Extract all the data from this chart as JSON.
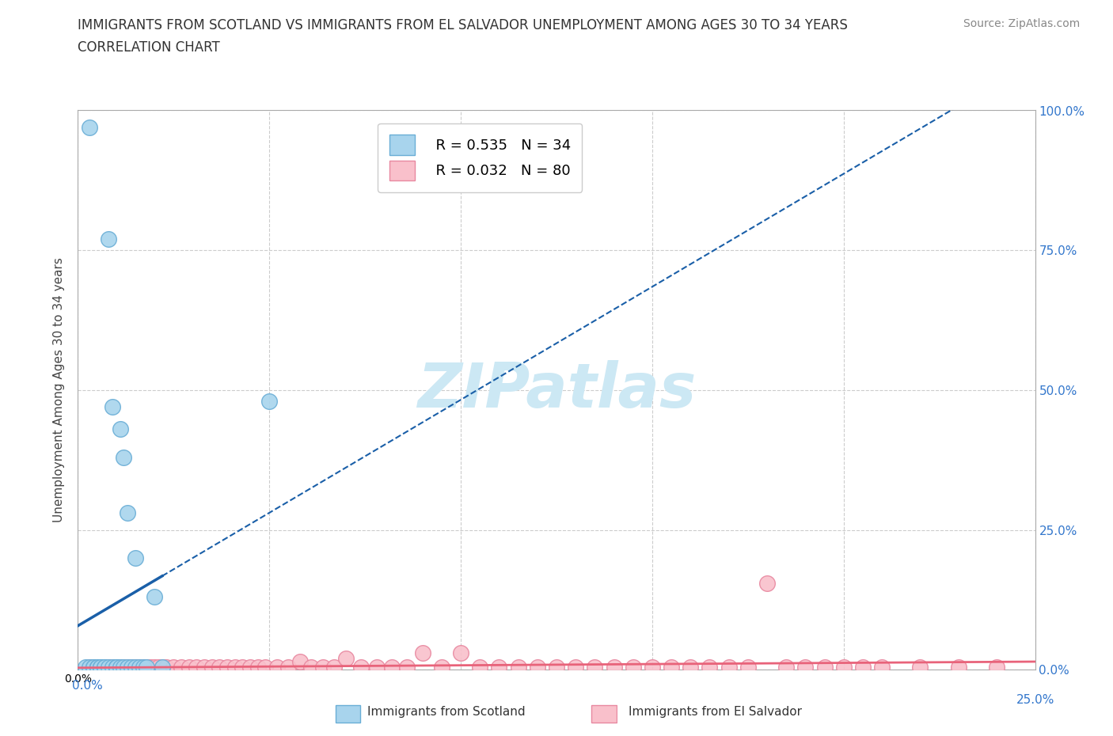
{
  "title_line1": "IMMIGRANTS FROM SCOTLAND VS IMMIGRANTS FROM EL SALVADOR UNEMPLOYMENT AMONG AGES 30 TO 34 YEARS",
  "title_line2": "CORRELATION CHART",
  "source_text": "Source: ZipAtlas.com",
  "ylabel": "Unemployment Among Ages 30 to 34 years",
  "xlim": [
    0,
    0.25
  ],
  "ylim": [
    0,
    1.0
  ],
  "xticks": [
    0.0,
    0.05,
    0.1,
    0.15,
    0.2,
    0.25
  ],
  "yticks": [
    0.0,
    0.25,
    0.5,
    0.75,
    1.0
  ],
  "scotland_color": "#a8d4ed",
  "scotland_edge": "#6aaed6",
  "el_salvador_color": "#f9c0cb",
  "el_salvador_edge": "#e888a0",
  "scotland_line_color": "#1a5fa8",
  "el_salvador_line_color": "#e8637a",
  "watermark_text": "ZIPatlas",
  "watermark_color": "#cce8f4",
  "legend_r_scotland": "R = 0.535",
  "legend_n_scotland": "N = 34",
  "legend_r_el_salvador": "R = 0.032",
  "legend_n_el_salvador": "N = 80",
  "scotland_x": [
    0.002,
    0.003,
    0.003,
    0.004,
    0.004,
    0.005,
    0.005,
    0.005,
    0.006,
    0.006,
    0.007,
    0.007,
    0.008,
    0.008,
    0.009,
    0.009,
    0.01,
    0.01,
    0.01,
    0.011,
    0.011,
    0.012,
    0.012,
    0.013,
    0.013,
    0.014,
    0.015,
    0.015,
    0.016,
    0.017,
    0.018,
    0.02,
    0.022,
    0.05
  ],
  "scotland_y": [
    0.004,
    0.004,
    0.97,
    0.004,
    0.004,
    0.004,
    0.004,
    0.004,
    0.004,
    0.004,
    0.004,
    0.004,
    0.004,
    0.77,
    0.004,
    0.47,
    0.004,
    0.004,
    0.004,
    0.43,
    0.004,
    0.004,
    0.38,
    0.004,
    0.28,
    0.004,
    0.004,
    0.2,
    0.004,
    0.004,
    0.004,
    0.13,
    0.004,
    0.48
  ],
  "el_salvador_x": [
    0.003,
    0.004,
    0.005,
    0.005,
    0.006,
    0.006,
    0.007,
    0.007,
    0.008,
    0.008,
    0.009,
    0.009,
    0.01,
    0.01,
    0.011,
    0.011,
    0.012,
    0.013,
    0.014,
    0.015,
    0.016,
    0.017,
    0.018,
    0.019,
    0.02,
    0.021,
    0.022,
    0.023,
    0.025,
    0.027,
    0.029,
    0.031,
    0.033,
    0.035,
    0.037,
    0.039,
    0.041,
    0.043,
    0.045,
    0.047,
    0.049,
    0.052,
    0.055,
    0.058,
    0.061,
    0.064,
    0.067,
    0.07,
    0.074,
    0.078,
    0.082,
    0.086,
    0.09,
    0.095,
    0.1,
    0.105,
    0.11,
    0.115,
    0.12,
    0.125,
    0.13,
    0.135,
    0.14,
    0.145,
    0.15,
    0.155,
    0.16,
    0.165,
    0.17,
    0.175,
    0.18,
    0.185,
    0.19,
    0.195,
    0.2,
    0.205,
    0.21,
    0.22,
    0.23,
    0.24
  ],
  "el_salvador_y": [
    0.004,
    0.004,
    0.004,
    0.004,
    0.004,
    0.004,
    0.004,
    0.004,
    0.004,
    0.004,
    0.004,
    0.004,
    0.004,
    0.004,
    0.004,
    0.004,
    0.004,
    0.004,
    0.004,
    0.004,
    0.004,
    0.004,
    0.004,
    0.004,
    0.004,
    0.004,
    0.004,
    0.004,
    0.004,
    0.004,
    0.004,
    0.004,
    0.004,
    0.004,
    0.004,
    0.004,
    0.004,
    0.004,
    0.004,
    0.004,
    0.004,
    0.004,
    0.004,
    0.015,
    0.004,
    0.004,
    0.004,
    0.02,
    0.004,
    0.004,
    0.004,
    0.004,
    0.03,
    0.004,
    0.03,
    0.004,
    0.004,
    0.004,
    0.004,
    0.004,
    0.004,
    0.004,
    0.004,
    0.004,
    0.004,
    0.004,
    0.004,
    0.004,
    0.004,
    0.004,
    0.155,
    0.004,
    0.004,
    0.004,
    0.004,
    0.004,
    0.004,
    0.004,
    0.004,
    0.004
  ]
}
